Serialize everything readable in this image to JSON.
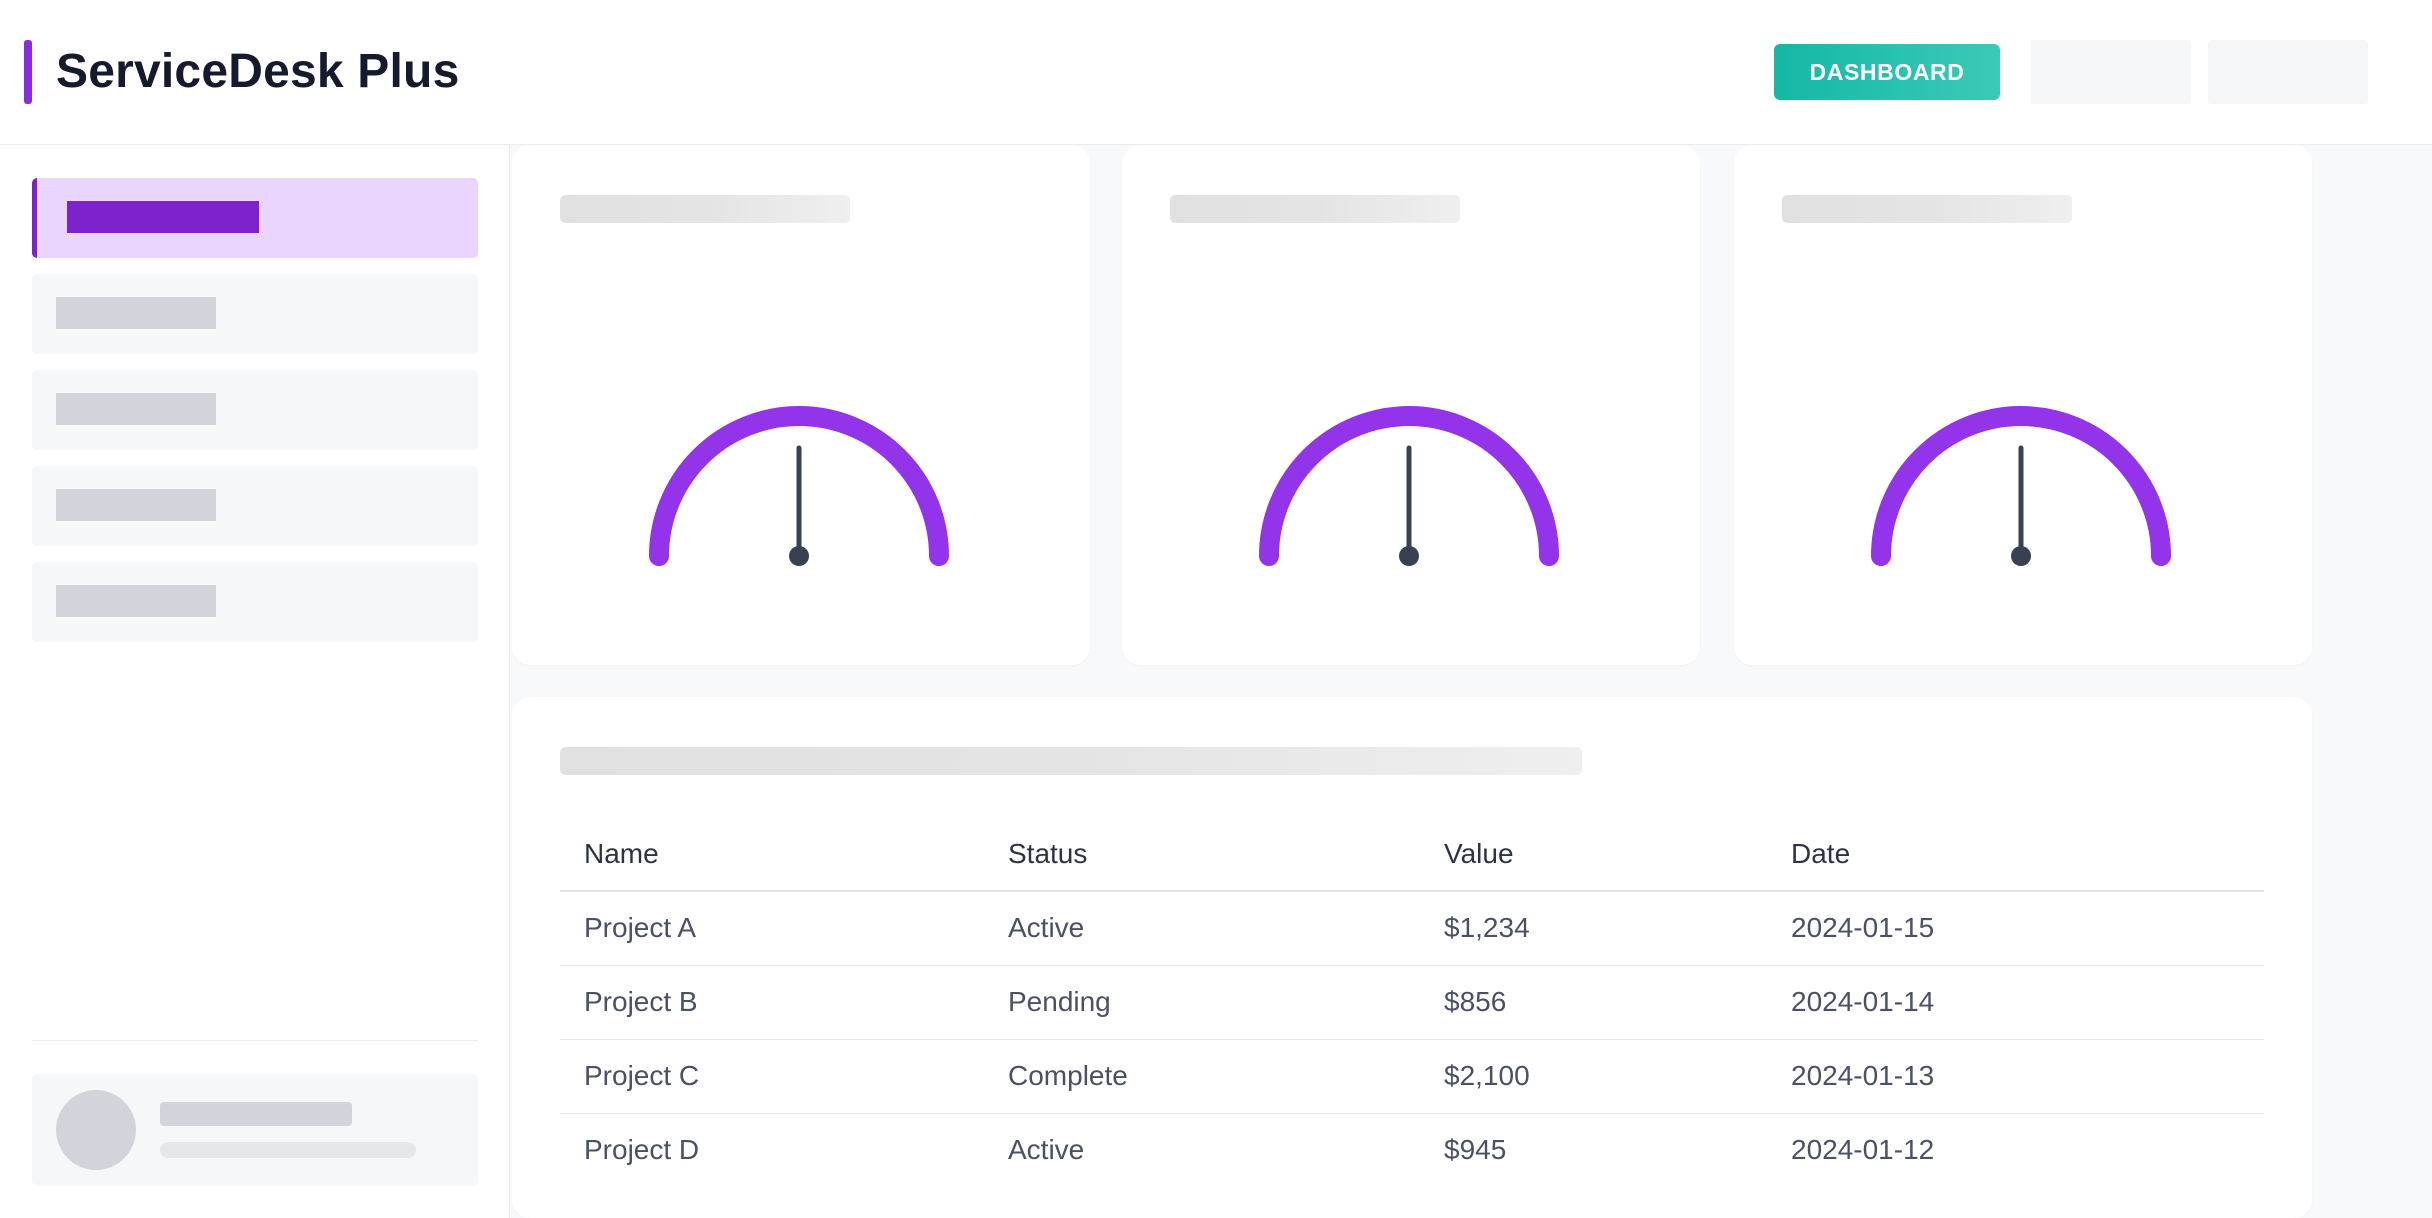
{
  "app": {
    "title": "ServiceDesk Plus"
  },
  "header": {
    "dashboard_label": "DASHBOARD"
  },
  "colors": {
    "accent": "#8a2be2",
    "nav_active_bg": "#e9d5fd",
    "nav_active_bar": "#7e22ce",
    "button_from": "#14b8a6",
    "button_to": "#2dd4bf",
    "gauge_arc": "#9333ea",
    "needle": "#374151"
  },
  "gauges": [
    {
      "level": 0.5
    },
    {
      "level": 0.5
    },
    {
      "level": 0.5
    }
  ],
  "table": {
    "columns": [
      "Name",
      "Status",
      "Value",
      "Date"
    ],
    "rows": [
      [
        "Project A",
        "Active",
        "$1,234",
        "2024-01-15"
      ],
      [
        "Project B",
        "Pending",
        "$856",
        "2024-01-14"
      ],
      [
        "Project C",
        "Complete",
        "$2,100",
        "2024-01-13"
      ],
      [
        "Project D",
        "Active",
        "$945",
        "2024-01-12"
      ]
    ]
  }
}
